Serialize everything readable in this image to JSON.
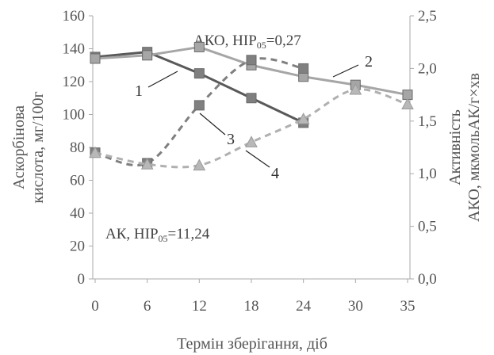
{
  "chart_data": {
    "type": "line",
    "x_categories": [
      "0",
      "6",
      "12",
      "18",
      "24",
      "30",
      "35"
    ],
    "xlabel": "Термін зберігання, діб",
    "left_axis": {
      "label_line1": "Аскорбінова",
      "label_line2": "кислота, мг/100г",
      "range": [
        0,
        160
      ],
      "ticks": [
        "0",
        "20",
        "40",
        "60",
        "80",
        "100",
        "120",
        "140",
        "160"
      ]
    },
    "right_axis": {
      "label_line1": "Активність",
      "label_line2": "АКО, мкмольАК/г×хв",
      "range": [
        0.0,
        2.5
      ],
      "ticks": [
        "0,0",
        "0,5",
        "1,0",
        "1,5",
        "2,0",
        "2,5"
      ]
    },
    "annotations": {
      "ako": {
        "main": "АКО, НІР",
        "sub": "05",
        "tail": "=0,27"
      },
      "ak": {
        "main": "АК, НІР",
        "sub": "05",
        "tail": "=11,24"
      }
    },
    "series": [
      {
        "label": "1",
        "axis": "left",
        "color": "#595959",
        "marker_fill": "#7f7f7f",
        "marker": "square",
        "dash": false,
        "values": [
          135,
          138,
          125,
          110,
          95,
          null,
          null
        ]
      },
      {
        "label": "2",
        "axis": "left",
        "color": "#a6a6a6",
        "marker_fill": "#a6a6a6",
        "marker": "square",
        "dash": false,
        "values": [
          134,
          136,
          141,
          130,
          123,
          118,
          112
        ]
      },
      {
        "label": "3",
        "axis": "right",
        "color": "#7f7f7f",
        "marker_fill": "#808080",
        "marker": "square",
        "dash": true,
        "values": [
          1.2,
          1.1,
          1.65,
          2.08,
          2.0,
          null,
          null
        ]
      },
      {
        "label": "4",
        "axis": "right",
        "color": "#b0b0b0",
        "marker_fill": "#b8b8b8",
        "marker": "triangle",
        "dash": true,
        "values": [
          1.2,
          1.09,
          1.08,
          1.3,
          1.52,
          1.8,
          1.66
        ]
      }
    ],
    "series_labels": [
      "1",
      "2",
      "3",
      "4"
    ]
  }
}
